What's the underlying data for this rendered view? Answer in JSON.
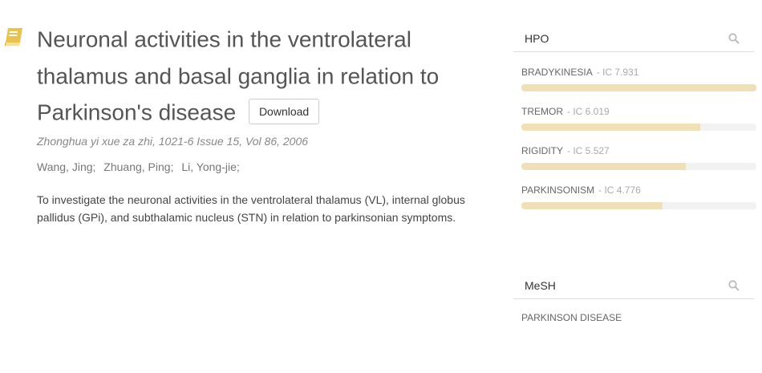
{
  "article": {
    "title": "Neuronal activities in the ventrolateral thalamus and basal ganglia in relation to Parkinson's disease",
    "download_label": "Download",
    "journal": "Zhonghua yi xue za zhi, 1021-6 Issue 15, Vol 86, 2006",
    "authors": [
      "Wang, Jing;",
      "Zhuang, Ping;",
      "Li, Yong-jie;"
    ],
    "abstract": "To investigate the neuronal activities in the ventrolateral thalamus (VL), internal globus pallidus (GPi), and subthalamic nucleus (STN) in relation to parkinsonian symptoms."
  },
  "hpo": {
    "label": "HPO",
    "terms": [
      {
        "name": "BRADYKINESIA",
        "ic": "- IC 7.931",
        "fraction": 1.0
      },
      {
        "name": "TREMOR",
        "ic": "- IC 6.019",
        "fraction": 0.76
      },
      {
        "name": "RIGIDITY",
        "ic": "- IC 5.527",
        "fraction": 0.7
      },
      {
        "name": "PARKINSONISM",
        "ic": "- IC 4.776",
        "fraction": 0.6
      }
    ]
  },
  "mesh": {
    "label": "MeSH",
    "terms": [
      "PARKINSON DISEASE"
    ]
  },
  "icons": {
    "book": "book-icon",
    "search": "search-icon"
  },
  "colors": {
    "book": "#e8c44f",
    "bar_fill": "#efe0b8",
    "bar_track": "#f2f2f2"
  }
}
